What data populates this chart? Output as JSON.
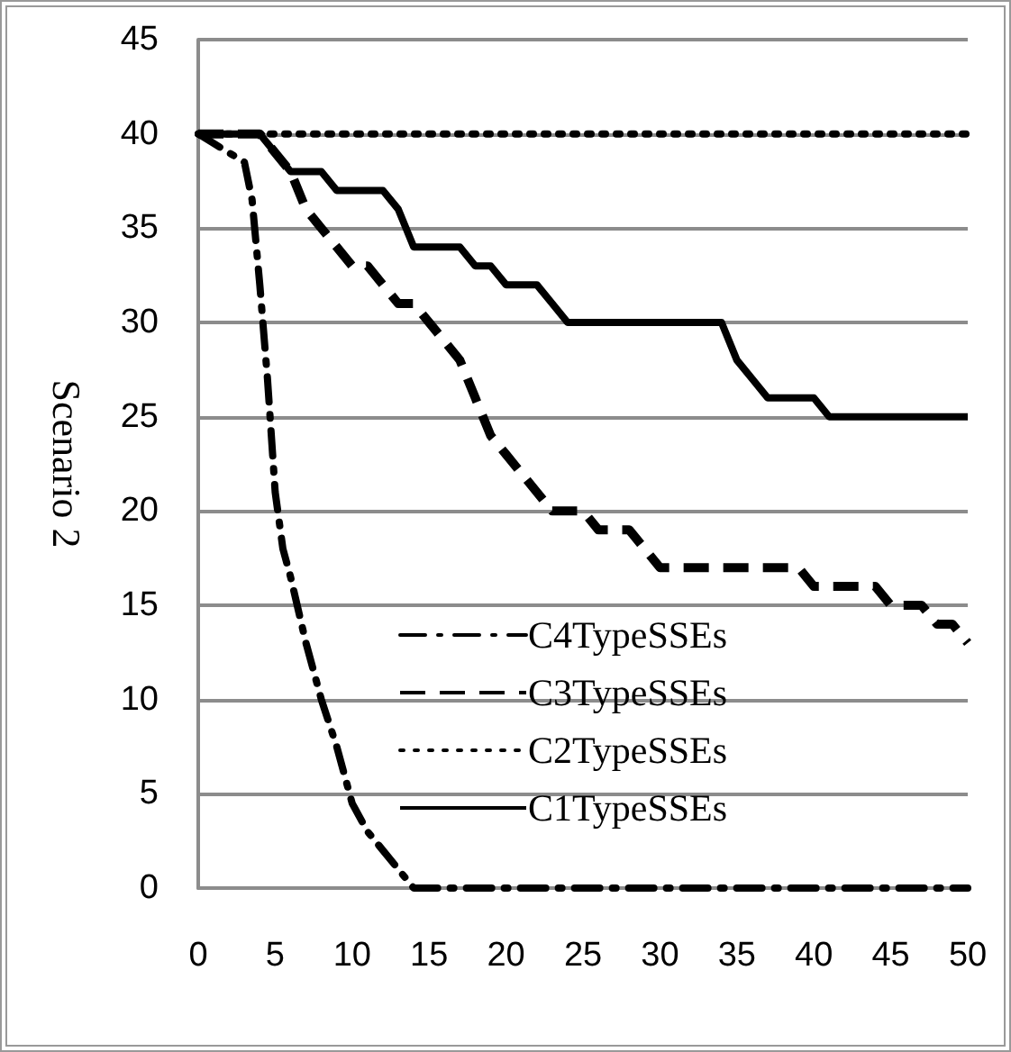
{
  "chart_data": {
    "type": "line",
    "ylabel": "Scenario 2",
    "xlim": [
      0,
      50
    ],
    "xticks": [
      0,
      5,
      10,
      15,
      20,
      25,
      30,
      35,
      40,
      45,
      50
    ],
    "ylim": [
      0,
      45
    ],
    "yticks": [
      0,
      5,
      10,
      15,
      20,
      25,
      30,
      35,
      40,
      45
    ],
    "grid": "y",
    "legend": "bottom",
    "marker": "none",
    "x": [
      0,
      1,
      2,
      3,
      4,
      5,
      6,
      7,
      8,
      9,
      10,
      11,
      12,
      13,
      14,
      15,
      16,
      17,
      18,
      19,
      20,
      21,
      22,
      23,
      24,
      25,
      26,
      27,
      28,
      29,
      30,
      31,
      32,
      33,
      34,
      35,
      36,
      37,
      38,
      39,
      40,
      41,
      42,
      43,
      44,
      45,
      46,
      47,
      48,
      49,
      50
    ],
    "series": [
      {
        "name": "C4TypeSSEs",
        "color": "#000000",
        "line_style": "dashdot",
        "x": [
          0,
          1,
          2,
          3,
          3.5,
          4,
          4.5,
          5,
          5.5,
          6,
          7,
          8,
          9,
          10,
          11,
          12,
          13,
          14,
          15,
          20,
          25,
          30,
          35,
          40,
          45,
          50
        ],
        "values": [
          40,
          39.5,
          39,
          38.5,
          36.5,
          32,
          27,
          21,
          18,
          16.5,
          13,
          10,
          7.5,
          4.5,
          3,
          2,
          1,
          0,
          0,
          0,
          0,
          0,
          0,
          0,
          0,
          0
        ]
      },
      {
        "name": "C3TypeSSEs",
        "color": "#000000",
        "line_style": "dashed",
        "values": [
          40,
          40,
          40,
          40,
          40,
          39,
          38,
          36,
          35,
          34,
          33,
          33,
          32,
          31,
          31,
          30,
          29,
          28,
          26,
          24,
          23,
          22,
          21,
          20,
          20,
          20,
          19,
          19,
          19,
          18,
          17,
          17,
          17,
          17,
          17,
          17,
          17,
          17,
          17,
          17,
          16,
          16,
          16,
          16,
          16,
          15,
          15,
          15,
          14,
          14,
          13
        ]
      },
      {
        "name": "C2TypeSSEs",
        "color": "#000000",
        "line_style": "dotted",
        "values": [
          40,
          40,
          40,
          40,
          40,
          40,
          40,
          40,
          40,
          40,
          40,
          40,
          40,
          40,
          40,
          40,
          40,
          40,
          40,
          40,
          40,
          40,
          40,
          40,
          40,
          40,
          40,
          40,
          40,
          40,
          40,
          40,
          40,
          40,
          40,
          40,
          40,
          40,
          40,
          40,
          40,
          40,
          40,
          40,
          40,
          40,
          40,
          40,
          40,
          40,
          40
        ]
      },
      {
        "name": "C1TypeSSEs",
        "color": "#000000",
        "line_style": "solid",
        "values": [
          40,
          40,
          40,
          40,
          40,
          39,
          38,
          38,
          38,
          37,
          37,
          37,
          37,
          36,
          34,
          34,
          34,
          34,
          33,
          33,
          32,
          32,
          32,
          31,
          30,
          30,
          30,
          30,
          30,
          30,
          30,
          30,
          30,
          30,
          30,
          28,
          27,
          26,
          26,
          26,
          26,
          25,
          25,
          25,
          25,
          25,
          25,
          25,
          25,
          25,
          25
        ]
      }
    ]
  }
}
